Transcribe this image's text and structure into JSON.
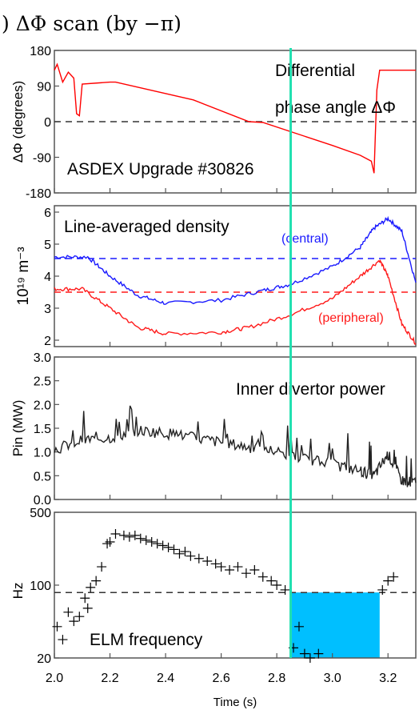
{
  "figure_title": ") ΔΦ scan (by −π)",
  "x_axis": {
    "label": "Time (s)",
    "ticks": [
      "2.0",
      "2.2",
      "2.4",
      "2.6",
      "2.8",
      "3.0",
      "3.2"
    ],
    "range": [
      2.0,
      3.3
    ]
  },
  "marker_time": 2.85,
  "chart_data": [
    {
      "type": "line",
      "panel": "phase",
      "ylabel": "ΔΦ (degrees)",
      "ylim": [
        -180,
        180
      ],
      "yticks": [
        "180",
        "90",
        "0",
        "-90",
        "-180"
      ],
      "annotations": [
        "Differential",
        "phase angle ΔΦ",
        "ASDEX Upgrade #30826"
      ],
      "reference_line": 0,
      "series": [
        {
          "color": "#ff0000",
          "x": [
            2.0,
            2.01,
            2.03,
            2.05,
            2.07,
            2.08,
            2.09,
            2.1,
            2.2,
            2.22,
            2.5,
            2.7,
            2.75,
            3.0,
            3.1,
            3.14,
            3.15,
            3.16,
            3.17,
            3.3
          ],
          "y": [
            130,
            145,
            100,
            125,
            110,
            20,
            15,
            95,
            100,
            100,
            55,
            0,
            -2,
            -60,
            -85,
            -100,
            -130,
            80,
            130,
            130
          ]
        }
      ]
    },
    {
      "type": "line",
      "panel": "density",
      "ylabel": "10¹⁹ m⁻³",
      "ylim": [
        1.8,
        6.2
      ],
      "yticks": [
        "6",
        "5",
        "4",
        "3",
        "2"
      ],
      "annotations": [
        "Line-averaged density",
        "(central)",
        "(peripheral)"
      ],
      "reference_lines": [
        4.55,
        3.5
      ],
      "series": [
        {
          "name": "(central)",
          "color": "#1a1aff",
          "x": [
            2.0,
            2.12,
            2.2,
            2.3,
            2.4,
            2.6,
            2.75,
            2.85,
            3.0,
            3.1,
            3.15,
            3.2,
            3.25,
            3.3
          ],
          "y": [
            4.6,
            4.6,
            4.0,
            3.4,
            3.15,
            3.25,
            3.55,
            3.75,
            4.3,
            4.9,
            5.5,
            5.8,
            5.4,
            3.8
          ]
        },
        {
          "name": "(peripheral)",
          "color": "#ff1a1a",
          "x": [
            2.0,
            2.1,
            2.2,
            2.3,
            2.4,
            2.6,
            2.7,
            2.85,
            3.0,
            3.1,
            3.17,
            3.2,
            3.25,
            3.3
          ],
          "y": [
            3.6,
            3.6,
            3.0,
            2.4,
            2.2,
            2.25,
            2.4,
            2.8,
            3.3,
            4.0,
            4.5,
            4.0,
            2.5,
            1.9
          ]
        }
      ]
    },
    {
      "type": "line",
      "panel": "power",
      "ylabel": "Pin (MW)",
      "ylim": [
        0.0,
        3.0
      ],
      "yticks": [
        "3.0",
        "2.5",
        "2.0",
        "1.5",
        "1.0",
        "0.5",
        "0.0"
      ],
      "annotations": [
        "Inner divertor power"
      ],
      "series": [
        {
          "color": "#222222",
          "x": [
            2.0,
            2.1,
            2.2,
            2.3,
            2.4,
            2.5,
            2.6,
            2.7,
            2.8,
            2.9,
            3.0,
            3.1,
            3.15,
            3.2,
            3.25,
            3.3
          ],
          "y": [
            1.05,
            1.25,
            1.3,
            1.45,
            1.4,
            1.3,
            1.2,
            1.1,
            1.0,
            0.85,
            0.75,
            0.6,
            0.5,
            0.95,
            0.4,
            0.35
          ]
        }
      ]
    },
    {
      "type": "scatter",
      "panel": "elm",
      "ylabel": "Hz",
      "yscale": "log",
      "ylim": [
        20,
        500
      ],
      "yticks": [
        "500",
        "100",
        "20"
      ],
      "annotations": [
        "ELM frequency"
      ],
      "reference_line": 85,
      "highlight": {
        "x": [
          2.85,
          3.17
        ],
        "y": [
          20,
          85
        ],
        "color": "#00bfff"
      },
      "series": [
        {
          "marker": "+",
          "x": [
            2.01,
            2.03,
            2.05,
            2.07,
            2.09,
            2.11,
            2.12,
            2.13,
            2.15,
            2.17,
            2.19,
            2.2,
            2.22,
            2.25,
            2.27,
            2.29,
            2.31,
            2.33,
            2.35,
            2.37,
            2.39,
            2.41,
            2.43,
            2.45,
            2.47,
            2.49,
            2.52,
            2.55,
            2.58,
            2.6,
            2.63,
            2.66,
            2.69,
            2.72,
            2.75,
            2.78,
            2.8,
            2.83,
            2.86,
            2.88,
            2.9,
            2.92,
            2.95,
            3.18,
            3.2,
            3.22
          ],
          "y": [
            40,
            30,
            55,
            45,
            50,
            75,
            60,
            95,
            110,
            150,
            250,
            260,
            310,
            300,
            290,
            300,
            280,
            270,
            260,
            250,
            240,
            230,
            220,
            200,
            210,
            190,
            180,
            170,
            160,
            150,
            140,
            150,
            130,
            140,
            120,
            110,
            100,
            90,
            25,
            40,
            22,
            20,
            22,
            90,
            110,
            120
          ]
        }
      ]
    }
  ]
}
